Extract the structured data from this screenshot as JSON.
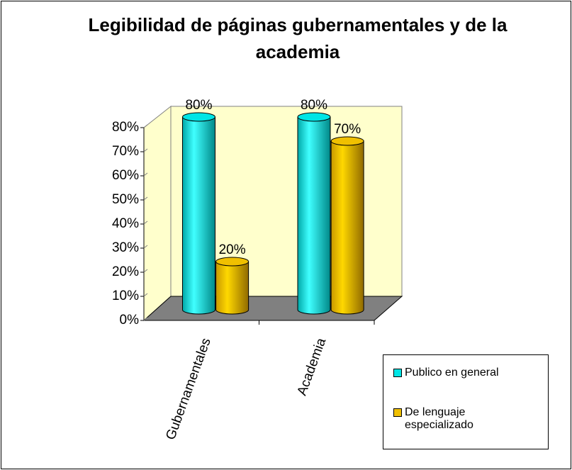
{
  "chart_data": {
    "type": "bar3d",
    "title": "Legibilidad de páginas gubernamentales y de la academia",
    "categories": [
      "Gubernamentales",
      "Academia"
    ],
    "series": [
      {
        "name": "Publico en general",
        "color": "#00e5e5",
        "values": [
          80,
          80
        ],
        "value_labels": [
          "80%",
          "80%"
        ]
      },
      {
        "name": "De lenguaje especializado",
        "color": "#f0c000",
        "values": [
          20,
          70
        ],
        "value_labels": [
          "20%",
          "70%"
        ]
      }
    ],
    "ylim": [
      0,
      80
    ],
    "yticks": [
      {
        "value": 0,
        "label": "0%"
      },
      {
        "value": 10,
        "label": "10%"
      },
      {
        "value": 20,
        "label": "20%"
      },
      {
        "value": 30,
        "label": "30%"
      },
      {
        "value": 40,
        "label": "40%"
      },
      {
        "value": 50,
        "label": "50%"
      },
      {
        "value": 60,
        "label": "60%"
      },
      {
        "value": 70,
        "label": "70%"
      },
      {
        "value": 80,
        "label": "80%"
      }
    ],
    "legend": "right"
  }
}
